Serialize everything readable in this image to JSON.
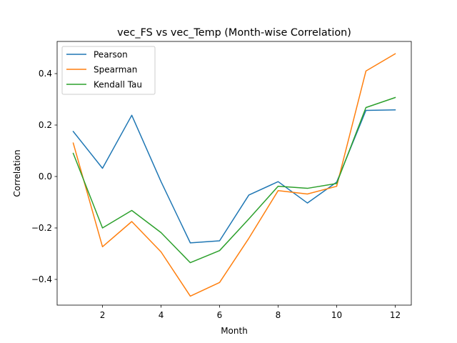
{
  "chart_data": {
    "type": "line",
    "title": "vec_FS vs vec_Temp (Month-wise Correlation)",
    "xlabel": "Month",
    "ylabel": "Correlation",
    "x": [
      1,
      2,
      3,
      4,
      5,
      6,
      7,
      8,
      9,
      10,
      11,
      12
    ],
    "xlim": [
      0.45,
      12.55
    ],
    "ylim": [
      -0.5,
      0.525
    ],
    "xticks": [
      2,
      4,
      6,
      8,
      10,
      12
    ],
    "xtick_labels": [
      "2",
      "4",
      "6",
      "8",
      "10",
      "12"
    ],
    "yticks": [
      -0.4,
      -0.2,
      0.0,
      0.2,
      0.4
    ],
    "ytick_labels": [
      "−0.4",
      "−0.2",
      "0.0",
      "0.2",
      "0.4"
    ],
    "grid": false,
    "legend_position": "top-left",
    "series": [
      {
        "name": "Pearson",
        "color": "#1f77b4",
        "values": [
          0.175,
          0.032,
          0.238,
          -0.02,
          -0.258,
          -0.25,
          -0.072,
          -0.02,
          -0.103,
          -0.022,
          0.257,
          0.259
        ]
      },
      {
        "name": "Spearman",
        "color": "#ff7f0e",
        "values": [
          0.13,
          -0.273,
          -0.175,
          -0.293,
          -0.465,
          -0.412,
          -0.24,
          -0.055,
          -0.068,
          -0.038,
          0.41,
          0.477
        ]
      },
      {
        "name": "Kendall Tau",
        "color": "#2ca02c",
        "values": [
          0.09,
          -0.2,
          -0.132,
          -0.218,
          -0.335,
          -0.288,
          -0.165,
          -0.038,
          -0.046,
          -0.027,
          0.268,
          0.307
        ]
      }
    ]
  }
}
